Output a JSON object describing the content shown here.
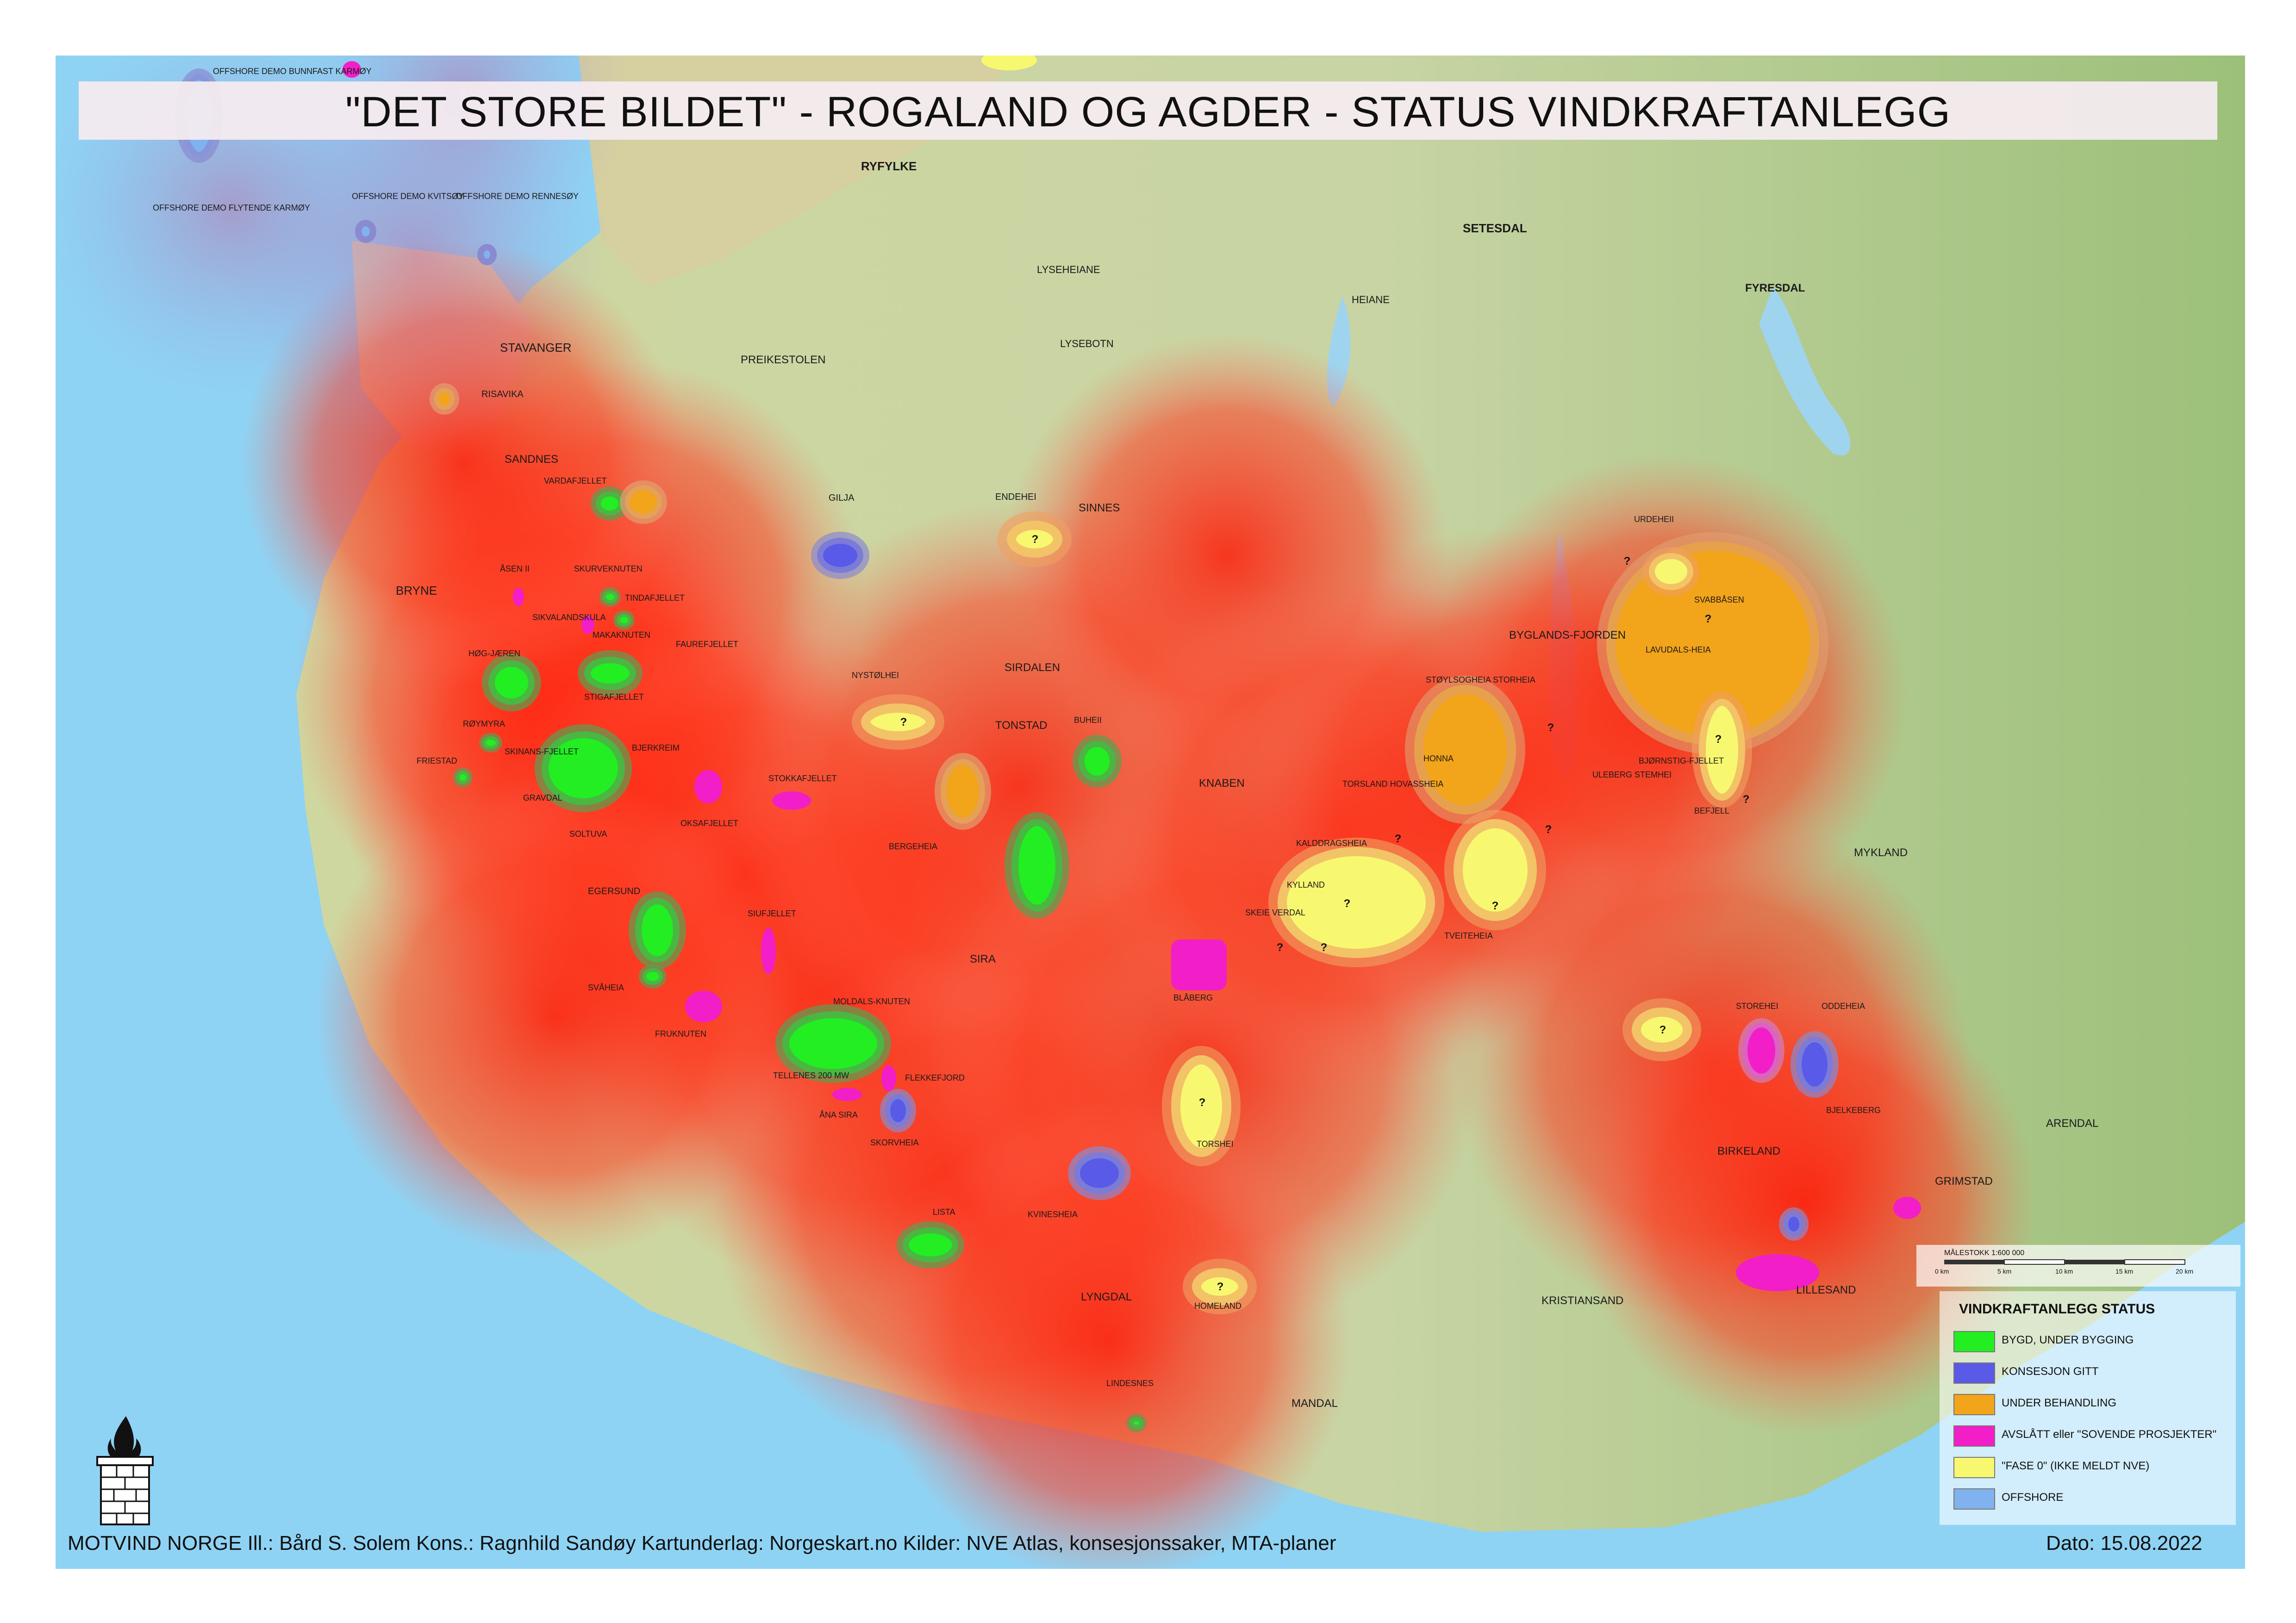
{
  "title": "\"DET STORE BILDET\"  -  ROGALAND OG AGDER  -  STATUS VINDKRAFTANLEGG",
  "footer": {
    "left": "MOTVIND NORGE  Ill.: Bård S. Solem   Kons.: Ragnhild Sandøy   Kartunderlag: Norgeskart.no   Kilder: NVE Atlas, konsesjonssaker, MTA-planer",
    "date": "Dato:  15.08.2022"
  },
  "scale": {
    "label": "MÅLESTOKK 1:600 000",
    "ticks": [
      "0 km",
      "5 km",
      "10 km",
      "15 km",
      "20 km"
    ]
  },
  "legend": {
    "title": "VINDKRAFTANLEGG STATUS",
    "items": [
      {
        "label": "BYGD, UNDER BYGGING",
        "color": "#22ee22"
      },
      {
        "label": "KONSESJON GITT",
        "color": "#5a5ae8"
      },
      {
        "label": "UNDER BEHANDLING",
        "color": "#f2a41a"
      },
      {
        "label": "AVSLÅTT eller \"SOVENDE PROSJEKTER\"",
        "color": "#f21ec8"
      },
      {
        "label": "\"FASE 0\" (IKKE MELDT NVE)",
        "color": "#f8f870"
      },
      {
        "label": "OFFSHORE",
        "color": "#7fb2ee"
      }
    ]
  },
  "colors": {
    "sea": "#8fd3f4",
    "land": "#d9c9a0",
    "impact_core": "#ff2a10",
    "impact_zone": "#ff5a40",
    "offshore_zone": "#8a93d8"
  },
  "places": [
    "RYFYLKE",
    "SETESDAL",
    "LYSEHEIANE",
    "HEIANE",
    "FYRESDAL",
    "STAVANGER",
    "PREIKESTOLEN",
    "LYSEBOTN",
    "RISAVIKA",
    "SANDNES",
    "VARDAFJELLET",
    "GILJA",
    "ENDEHEI",
    "SINNES",
    "BRYNE",
    "ÅSEN II",
    "SKURVEKNUTEN",
    "TINDAFJELLET",
    "SIKVALANDSKULA",
    "MAKAKNUTEN",
    "FAUREFJELLET",
    "HØG-JÆREN",
    "STIGAFJELLET",
    "RØYMYRA",
    "SKINANS-FJELLET",
    "BJERKREIM",
    "FRIESTAD",
    "GRAVDAL",
    "SOLTUVA",
    "OKSAFJELLET",
    "STOKKAFJELLET",
    "NYSTØLHEI",
    "SIRDALEN",
    "TONSTAD",
    "BUHEII",
    "KNABEN",
    "BERGEHEIA",
    "EGERSUND",
    "SIUFJELLET",
    "SVÅHEIA",
    "FRUKNUTEN",
    "MOLDALS-KNUTEN",
    "TELLENES 200 MW",
    "FLEKKEFJORD",
    "ÅNA SIRA",
    "SKORVHEIA",
    "SIRA",
    "BLÅBERG",
    "TORSHEI",
    "LISTA",
    "KVINESHEIA",
    "LYNGDAL",
    "HOMELAND",
    "LINDESNES",
    "MANDAL",
    "KRISTIANSAND",
    "LILLESAND",
    "GRIMSTAD",
    "ARENDAL",
    "BIRKELAND",
    "STOREHEI",
    "ODDEHEIA",
    "BJELKEBERG",
    "MYKLAND",
    "BYGLANDS-FJORDEN",
    "URDEHEII",
    "SVABBÅSEN",
    "LAVUDALS-HEIA",
    "BJØRNSTIG-FJELLET",
    "BEFJELL",
    "ULEBERG STEMHEI",
    "STØYLSOGHEIA STORHEIA",
    "HONNA",
    "TORSLAND HOVASSHEIA",
    "KALDDRAGSHEIA",
    "KYLLAND",
    "SKEIE VERDAL",
    "TVEITEHEIA",
    "OFFSHORE DEMO FLYTENDE KARMØY",
    "OFFSHORE DEMO KVITSØY",
    "OFFSHORE DEMO RENNESØY",
    "OFFSHORE DEMO BUNNFAST KARMØY"
  ],
  "unknown_marker": "?"
}
